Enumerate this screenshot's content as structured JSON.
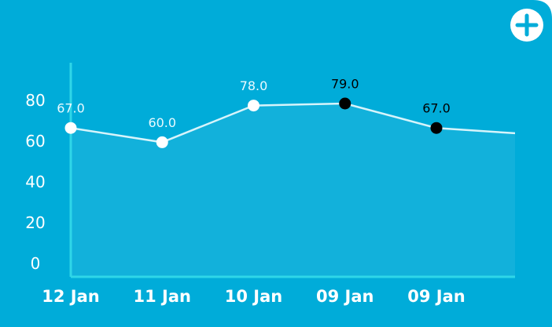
{
  "chart_data": {
    "type": "line",
    "categories": [
      "12 Jan",
      "11 Jan",
      "10 Jan",
      "09 Jan",
      "09 Jan",
      null
    ],
    "values": [
      67,
      60,
      78,
      79,
      67,
      64
    ],
    "value_labels": [
      "67.0",
      "60.0",
      "78.0",
      "79.0",
      "67.0",
      null
    ],
    "marker_colors": [
      "#ffffff",
      "#ffffff",
      "#ffffff",
      "#000000",
      "#000000",
      null
    ],
    "color": "#d6f4fb",
    "ylim": [
      -6,
      99
    ],
    "yticks": [
      0,
      20,
      40,
      60,
      80
    ],
    "grid": false
  }
}
